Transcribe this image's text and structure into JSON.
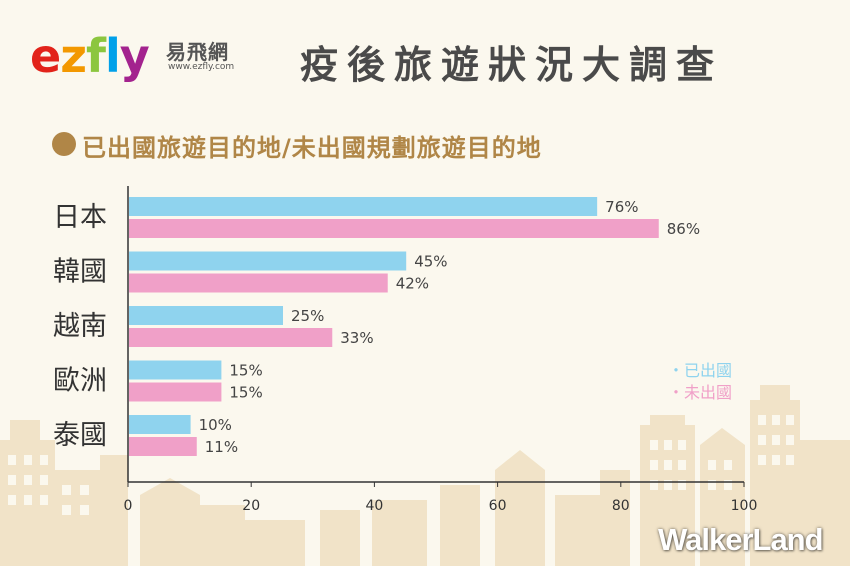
{
  "header": {
    "logo_text": "ezfly",
    "logo_cn": "易飛網",
    "logo_url": "www.ezfly.com",
    "title": "疫後旅遊狀況大調查"
  },
  "subtitle": "已出國旅遊目的地/未出國規劃旅遊目的地",
  "watermark": "WalkerLand",
  "colors": {
    "series1": "#8fd3ee",
    "series2": "#f0a0c8",
    "title": "#4a4a4a",
    "accent": "#b08647"
  },
  "chart_data": {
    "type": "bar",
    "orientation": "horizontal",
    "categories": [
      "日本",
      "韓國",
      "越南",
      "歐洲",
      "泰國"
    ],
    "series": [
      {
        "name": "已出國",
        "values": [
          76,
          45,
          25,
          15,
          10
        ],
        "labels": [
          "76%",
          "45%",
          "25%",
          "15%",
          "10%"
        ]
      },
      {
        "name": "未出國",
        "values": [
          86,
          42,
          33,
          15,
          11
        ],
        "labels": [
          "86%",
          "42%",
          "33%",
          "15%",
          "11%"
        ]
      }
    ],
    "xlim": [
      0,
      100
    ],
    "xticks": [
      0,
      20,
      40,
      60,
      80,
      100
    ],
    "legend_items": [
      "・已出國",
      "・未出國"
    ],
    "legend_position": "right",
    "grid": false
  }
}
